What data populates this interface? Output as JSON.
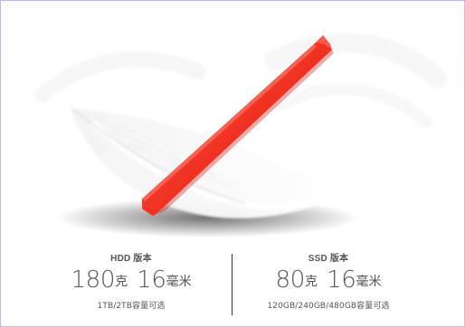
{
  "colors": {
    "frame": "#b9b9ef",
    "product": "#ef2f20",
    "text": "#555555"
  },
  "hdd": {
    "label": "HDD 版本",
    "weight_value": "180",
    "weight_unit": "克",
    "thickness_value": "16",
    "thickness_unit": "毫米",
    "capacity": "1TB/2TB容量可选"
  },
  "ssd": {
    "label": "SSD 版本",
    "weight_value": "80",
    "weight_unit": "克",
    "thickness_value": "16",
    "thickness_unit": "毫米",
    "capacity": "120GB/240GB/480GB容量可选"
  }
}
